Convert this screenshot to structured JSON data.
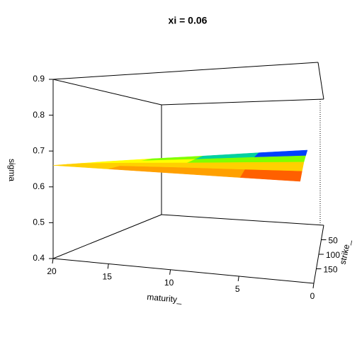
{
  "chart_data": {
    "type": "surface3d",
    "title": "xi = 0.06",
    "xlabel": "maturity_",
    "ylabel": "strike_",
    "zlabel": "sigma",
    "x": [
      1,
      5,
      10,
      15,
      20
    ],
    "y": [
      100,
      125,
      150,
      175,
      200
    ],
    "z": [
      [
        0.7,
        0.685,
        0.67,
        0.65,
        0.63
      ],
      [
        0.692,
        0.68,
        0.668,
        0.652,
        0.636
      ],
      [
        0.681,
        0.673,
        0.665,
        0.655,
        0.644
      ],
      [
        0.671,
        0.667,
        0.663,
        0.657,
        0.652
      ],
      [
        0.66,
        0.66,
        0.66,
        0.66,
        0.66
      ]
    ],
    "xlim": [
      20,
      0
    ],
    "xticks": [
      20,
      15,
      10,
      5,
      0
    ],
    "ylim": [
      200,
      0
    ],
    "yticks": [
      50,
      100,
      150
    ],
    "zlim": [
      0.4,
      0.9
    ],
    "zticks": [
      0.4,
      0.5,
      0.6,
      0.7,
      0.8,
      0.9
    ],
    "palette": [
      "#ff0000",
      "#ff6000",
      "#ffa000",
      "#ffd000",
      "#ffff00",
      "#80ff00",
      "#00d0a0",
      "#0040ff",
      "#2000c0"
    ]
  }
}
